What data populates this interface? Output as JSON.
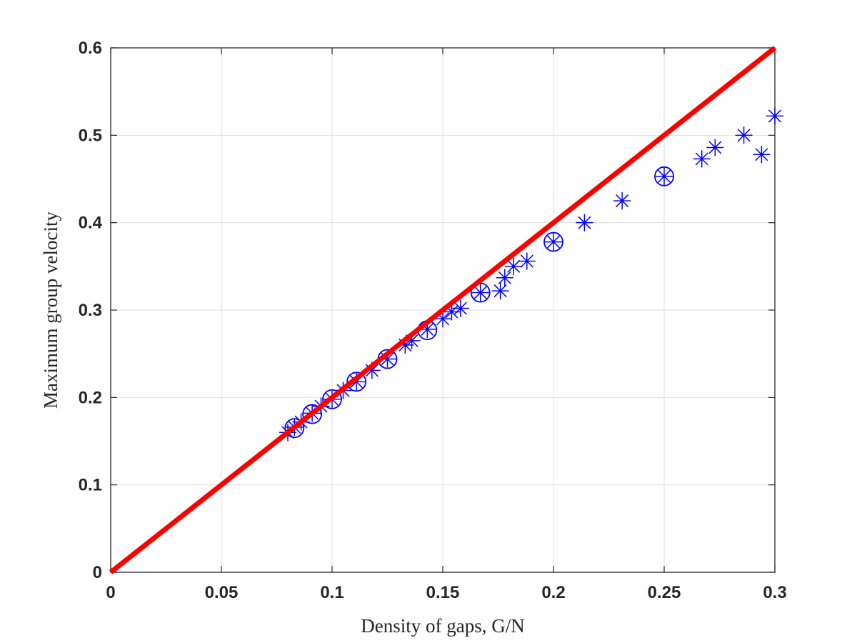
{
  "chart_data": {
    "type": "scatter",
    "xlabel": "Density of gaps, G/N",
    "ylabel": "Maximum group velocity",
    "xlim": [
      0,
      0.3
    ],
    "ylim": [
      0,
      0.6
    ],
    "xticks": [
      0,
      0.05,
      0.1,
      0.15,
      0.2,
      0.25,
      0.3
    ],
    "yticks": [
      0,
      0.1,
      0.2,
      0.3,
      0.4,
      0.5,
      0.6
    ],
    "grid": true,
    "series": [
      {
        "marker": "asterisk",
        "color": "#0000ff",
        "x": [
          0.08,
          0.083,
          0.086,
          0.091,
          0.095,
          0.1,
          0.105,
          0.111,
          0.118,
          0.125,
          0.133,
          0.136,
          0.143,
          0.15,
          0.154,
          0.158,
          0.167,
          0.176,
          0.178,
          0.182,
          0.188,
          0.2,
          0.214,
          0.231,
          0.25,
          0.267,
          0.273,
          0.286,
          0.294,
          0.3
        ],
        "values": [
          0.16,
          0.166,
          0.172,
          0.182,
          0.19,
          0.198,
          0.208,
          0.218,
          0.231,
          0.244,
          0.26,
          0.265,
          0.278,
          0.29,
          0.298,
          0.302,
          0.32,
          0.322,
          0.337,
          0.35,
          0.356,
          0.378,
          0.4,
          0.425,
          0.453,
          0.473,
          0.486,
          0.5,
          0.478,
          0.522
        ]
      },
      {
        "marker": "circle",
        "color": "#0000ff",
        "x": [
          0.083,
          0.091,
          0.1,
          0.111,
          0.125,
          0.143,
          0.167,
          0.2,
          0.25
        ],
        "values": [
          0.165,
          0.181,
          0.198,
          0.218,
          0.244,
          0.277,
          0.32,
          0.378,
          0.453
        ]
      },
      {
        "marker": "line",
        "color": "#ff0000",
        "x": [
          0,
          0.3
        ],
        "values": [
          0,
          0.6
        ]
      }
    ]
  }
}
